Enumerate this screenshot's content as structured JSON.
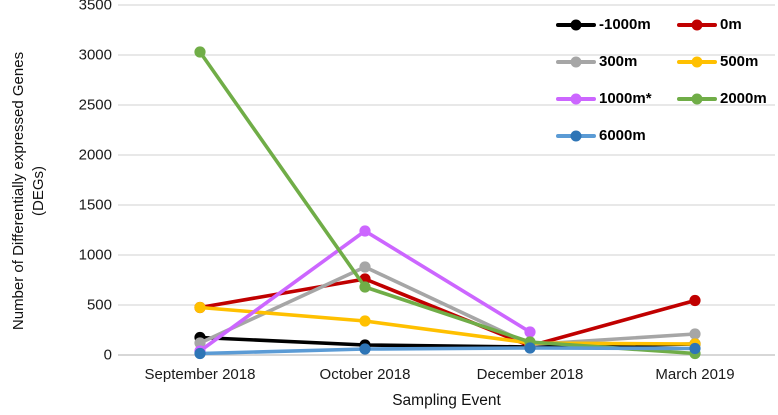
{
  "chart_data": {
    "type": "line",
    "title": "",
    "xlabel": "Sampling Event",
    "ylabel": "Number of Differentially expressed Genes (DEGs)",
    "ylabel_lines": [
      "Number of Differentially expressed Genes",
      "(DEGs)"
    ],
    "categories": [
      "September 2018",
      "October 2018",
      "December 2018",
      "March 2019"
    ],
    "series": [
      {
        "name": "-1000m",
        "color": "#000000",
        "values": [
          175,
          100,
          80,
          110
        ]
      },
      {
        "name": "0m",
        "color": "#C00000",
        "values": [
          475,
          760,
          90,
          545
        ]
      },
      {
        "name": "300m",
        "color": "#A6A6A6",
        "values": [
          120,
          880,
          105,
          210
        ]
      },
      {
        "name": "500m",
        "color": "#FFC000",
        "values": [
          475,
          340,
          120,
          110
        ]
      },
      {
        "name": "1000m*",
        "color": "#CC66FF",
        "values": [
          40,
          1240,
          230,
          null
        ]
      },
      {
        "name": "2000m",
        "color": "#70AD47",
        "values": [
          3030,
          680,
          130,
          15
        ]
      },
      {
        "name": "6000m",
        "color": "#5B9BD5",
        "marker_color": "#2E75B6",
        "values": [
          15,
          60,
          70,
          65
        ]
      }
    ],
    "ylim": [
      0,
      3500
    ],
    "yticks": [
      0,
      500,
      1000,
      1500,
      2000,
      2500,
      3000,
      3500
    ],
    "grid": true,
    "legend_position": "top-right",
    "gridline_color": "#D9D9D9",
    "axis_line_color": "#BFBFBF"
  }
}
